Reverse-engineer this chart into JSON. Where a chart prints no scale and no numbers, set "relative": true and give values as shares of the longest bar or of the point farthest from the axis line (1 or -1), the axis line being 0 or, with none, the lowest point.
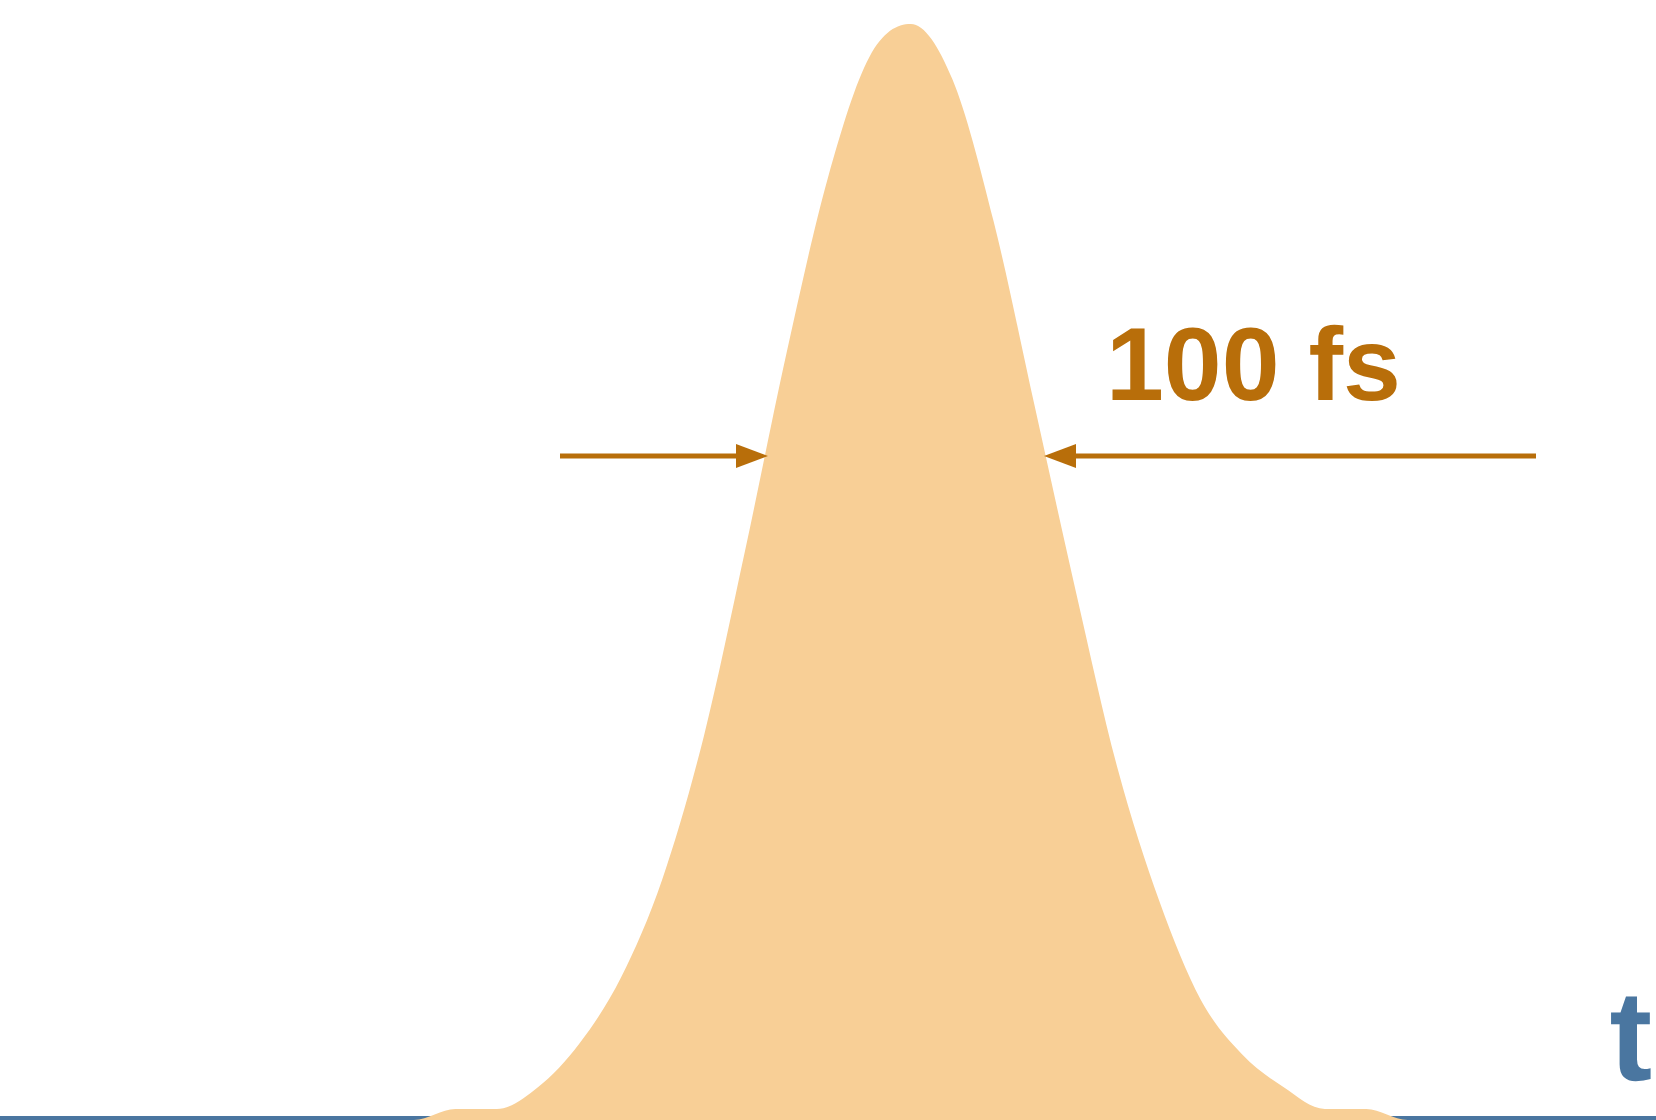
{
  "chart_data": {
    "type": "area",
    "relative": true,
    "xlabel": "t",
    "annotations": [
      "100 fs"
    ],
    "categories": [
      null,
      null,
      null,
      null,
      null,
      null,
      null,
      null,
      null,
      null,
      null,
      null,
      null,
      null,
      null,
      null,
      null,
      null,
      null,
      null,
      null,
      null,
      null,
      null,
      null,
      null,
      null,
      null,
      null,
      null,
      null,
      null,
      null,
      null,
      null,
      null,
      null,
      null,
      null,
      null,
      null
    ],
    "series": [
      {
        "color": "#f8cf96",
        "values": [
          0,
          0,
          0,
          0,
          0,
          0,
          0,
          0,
          0,
          0,
          0,
          0.01,
          0.01,
          0.03,
          0.07,
          0.13,
          0.22,
          0.35,
          0.52,
          0.7,
          0.86,
          0.97,
          1,
          0.95,
          0.82,
          0.65,
          0.48,
          0.32,
          0.2,
          0.11,
          0.06,
          0.03,
          0.01,
          0.01,
          0,
          0,
          0,
          0,
          0,
          0,
          0
        ]
      }
    ],
    "grid": false,
    "legend": false
  }
}
